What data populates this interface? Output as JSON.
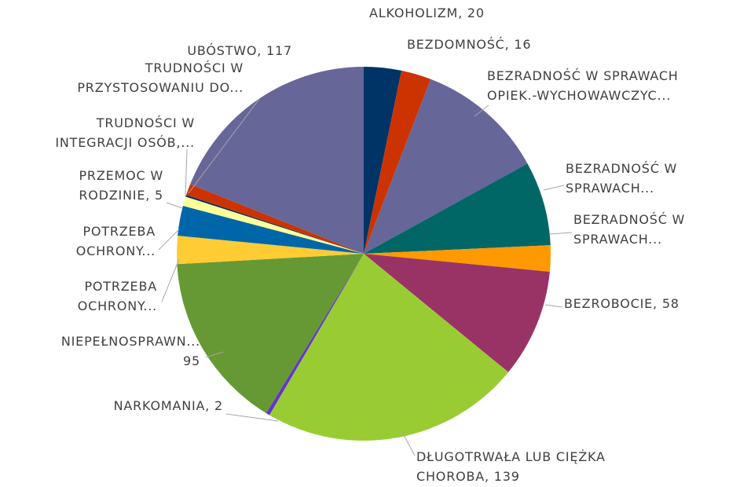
{
  "chart_data": {
    "type": "pie",
    "labels": [
      "ALKOHOLIZM, 20",
      "BEZDOMNOŚĆ, 16",
      "BEZRADNOŚĆ  W  SPRAWACH\nOPIEK.-WYCHOWAWCZYC...",
      "BEZRADNOŚĆ W\nSPRAWACH...",
      "BEZRADNOŚĆ W\nSPRAWACH...",
      "BEZROBOCIE, 58",
      "DŁUGOTRWAŁA LUB CIĘŻKA\nCHOROBA, 139",
      "NARKOMANIA, 2",
      "NIEPEŁNOSPRAWN...\n95",
      "POTRZEBA\nOCHRONY...",
      "POTRZEBA\nOCHRONY...",
      "PRZEMOC W\nRODZINIE, 5",
      "TRUDNOŚCI W\nINTEGRACJI OSÓB,...",
      "TRUDNOŚCI W\nPRZYSTOSOWANIU DO...",
      "UBÓSTWO, 117"
    ],
    "values": [
      20,
      16,
      69,
      45,
      14,
      58,
      139,
      2,
      95,
      15,
      16,
      5,
      1,
      6,
      117
    ],
    "colors": [
      "#003366",
      "#cc3300",
      "#666699",
      "#006666",
      "#ff9900",
      "#993366",
      "#99cc33",
      "#6633cc",
      "#669933",
      "#ffcc33",
      "#0066aa",
      "#ffff99",
      "#003366",
      "#cc3300",
      "#666699"
    ]
  }
}
